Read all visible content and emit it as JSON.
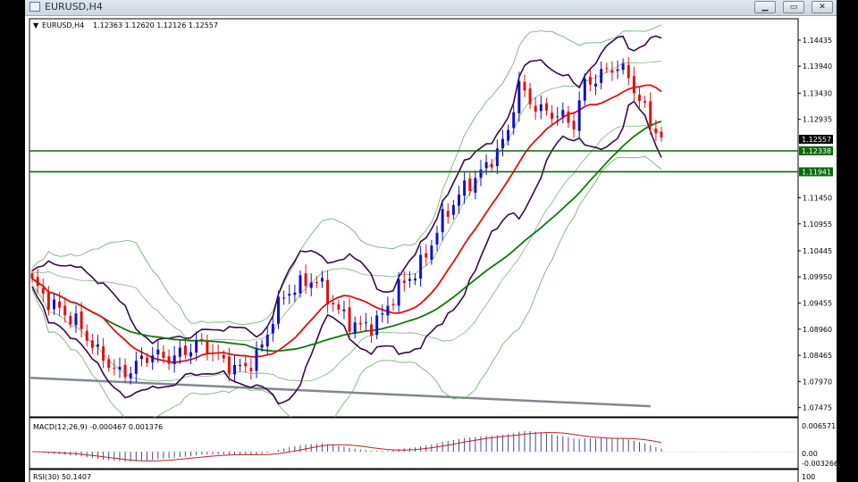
{
  "window": {
    "title": "EURUSD,H4",
    "min_glyph": "▁",
    "max_glyph": "▭",
    "close_glyph": "✕"
  },
  "colors": {
    "bull": "#1010c8",
    "bear": "#e01010",
    "ma_fast": "#e01010",
    "ma_slow": "#0a7a0a",
    "env": "#3a0a4a",
    "bands": "#6aaa6a",
    "level": "#0a6a0a",
    "trend": "#808890"
  },
  "chart_data": [
    {
      "type": "candlestick",
      "symbol": "EURUSD",
      "timeframe": "H4",
      "header": {
        "prefix": "▼",
        "label": "EURUSD,H4",
        "ohlc": "1.12363 1.12620 1.12126 1.12557"
      },
      "ylim": [
        1.073,
        1.1484
      ],
      "y_ticks": [
        "1.14435",
        "1.13940",
        "1.13430",
        "1.12935",
        "1.11450",
        "1.10955",
        "1.10445",
        "1.09950",
        "1.09455",
        "1.08960",
        "1.08465",
        "1.07970",
        "1.07475"
      ],
      "price_labels": {
        "current": "1.12557",
        "level_1": "1.12338",
        "level_2": "1.11941"
      },
      "horizontal_levels": [
        1.12338,
        1.11941
      ],
      "trendline": [
        [
          0,
          1.0804
        ],
        [
          113,
          1.075
        ]
      ],
      "anchor_closes": [
        1.0985,
        1.096,
        1.094,
        1.0925,
        1.091,
        1.088,
        1.085,
        1.083,
        1.081,
        1.082,
        1.084,
        1.085,
        1.084,
        1.0845,
        1.0855,
        1.087,
        1.086,
        1.084,
        1.0825,
        1.082,
        1.0835,
        1.087,
        1.093,
        1.0965,
        1.0975,
        1.099,
        1.0985,
        1.095,
        1.0925,
        1.0905,
        1.09,
        1.0905,
        1.093,
        1.097,
        1.099,
        1.101,
        1.105,
        1.11,
        1.113,
        1.116,
        1.118,
        1.12,
        1.123,
        1.126,
        1.136,
        1.133,
        1.131,
        1.1305,
        1.13,
        1.128,
        1.136,
        1.137,
        1.1385,
        1.1395,
        1.1375,
        1.133,
        1.129,
        1.1256
      ]
    },
    {
      "type": "macd",
      "header": "MACD(12,26,9) -0.000467 0.001376",
      "y_ticks": [
        "0.006571",
        "0.00",
        "-0.003266"
      ]
    },
    {
      "type": "rsi",
      "header": "RSI(30) 50.1407",
      "y_ticks": [
        "100"
      ]
    }
  ]
}
